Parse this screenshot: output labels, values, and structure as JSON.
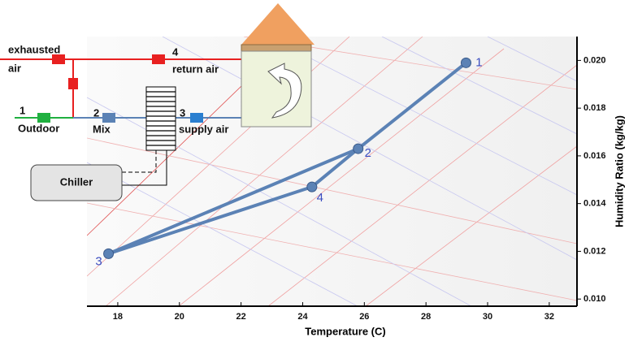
{
  "chart_data": {
    "type": "line",
    "x_label": "Temperature (C)",
    "y_label": "Humidity Ratio (kg/kg)",
    "xlim": [
      17,
      32.9
    ],
    "ylim": [
      0.0097,
      0.021
    ],
    "xticks": [
      18,
      20,
      22,
      24,
      26,
      28,
      30,
      32
    ],
    "yticks": [
      {
        "value": 0.01,
        "label": "0.010"
      },
      0.012,
      0.014,
      0.016,
      0.018,
      {
        "value": 0.02,
        "label": "0.020"
      }
    ],
    "x": [
      29.3,
      25.8,
      17.7,
      24.3
    ],
    "values": [
      0.0199,
      0.0163,
      0.0119,
      0.0147
    ],
    "point_labels": [
      "1",
      "2",
      "3",
      "4"
    ],
    "color": "#5b82b5"
  },
  "diagram": {
    "exhausted": "exhausted",
    "air": "air",
    "return_num": "4",
    "return_label": "return air",
    "outdoor_num": "1",
    "outdoor_label": "Outdoor",
    "mix_num": "2",
    "mix_label": "Mix",
    "supply_num": "3",
    "supply_label": "supply air",
    "chiller": "Chiller"
  }
}
